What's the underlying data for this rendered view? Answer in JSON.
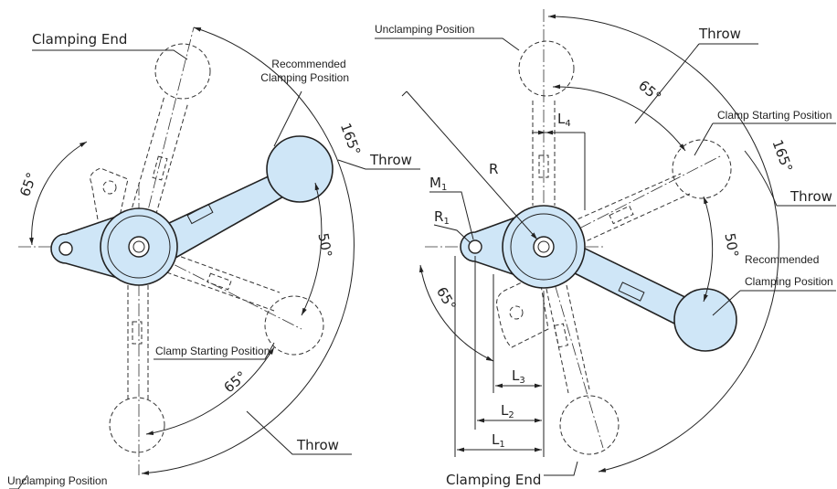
{
  "left": {
    "clamping_end": "Clamping End",
    "recommended": [
      "Recommended",
      "Clamping Position"
    ],
    "angle_165": "165°",
    "throw_top": "Throw",
    "angle_65_left": "65°",
    "angle_50": "50°",
    "clamp_starting": "Clamp Starting Position",
    "angle_65_bottom": "65°",
    "throw_bottom": "Throw",
    "unclamping": "Unclamping Position"
  },
  "right": {
    "unclamping": "Unclamping Position",
    "throw_top": "Throw",
    "angle_65_top": "65°",
    "l4": {
      "text": "L",
      "sub": "4"
    },
    "clamp_starting": "Clamp Starting Position",
    "angle_165": "165°",
    "throw_right": "Throw",
    "m1": {
      "text": "M",
      "sub": "1"
    },
    "r": "R",
    "r1": {
      "text": "R",
      "sub": "1"
    },
    "angle_50": "50°",
    "recommended": [
      "Recommended",
      "Clamping Position"
    ],
    "angle_65_left": "65°",
    "l3": {
      "text": "L",
      "sub": "3"
    },
    "l2": {
      "text": "L",
      "sub": "2"
    },
    "l1": {
      "text": "L",
      "sub": "1"
    },
    "clamping_end": "Clamping End"
  }
}
